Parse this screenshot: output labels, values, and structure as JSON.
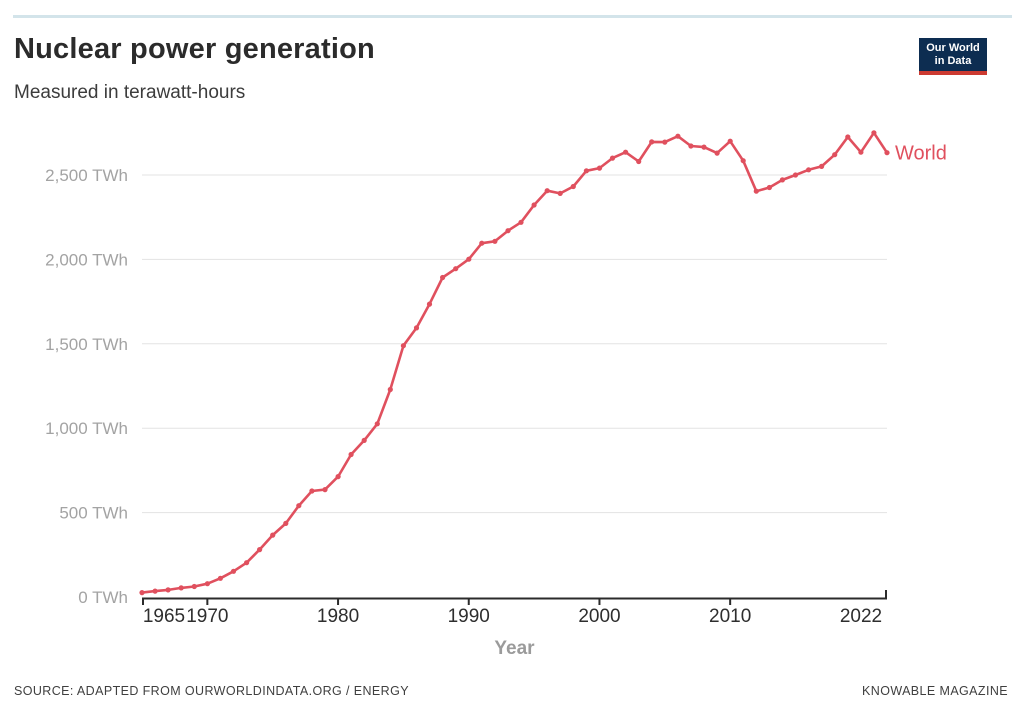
{
  "page": {
    "title": "Nuclear power generation",
    "subtitle": "Measured in terawatt-hours",
    "source_note": "SOURCE: ADAPTED FROM OURWORLDINDATA.ORG / ENERGY",
    "credit": "KNOWABLE MAGAZINE"
  },
  "logo": {
    "name": "our-world-in-data-logo",
    "line1": "Our World",
    "line2": "in Data",
    "bg_color": "#0d2d51",
    "bar_color": "#cc3a31"
  },
  "colors": {
    "accent_rule": "#d3e4ea",
    "line": "#e0505e",
    "grid": "#e3e3e3",
    "axis": "#2b2b2b",
    "y_tick_label": "#a3a3a3",
    "x_tick_label": "#2e2e2e",
    "axis_title": "#9b9b9b"
  },
  "chart_data": {
    "type": "line",
    "title": "Nuclear power generation",
    "subtitle": "Measured in terawatt-hours",
    "xlabel": "Year",
    "ylabel": "",
    "unit": "TWh",
    "xlim": [
      1965,
      2022
    ],
    "ylim": [
      0,
      2790
    ],
    "grid": "horizontal",
    "legend": "end-of-line label",
    "x_ticks": [
      1965,
      1970,
      1980,
      1990,
      2000,
      2010,
      2022
    ],
    "x_tick_labels": [
      "1965",
      "1970",
      "1980",
      "1990",
      "2000",
      "2010",
      "2022"
    ],
    "y_ticks": [
      0,
      500,
      1000,
      1500,
      2000,
      2500
    ],
    "y_tick_labels": [
      "0 TWh",
      "500 TWh",
      "1,000 TWh",
      "1,500 TWh",
      "2,000 TWh",
      "2,500 TWh"
    ],
    "series": [
      {
        "name": "World",
        "color": "#e0505e",
        "years": [
          1965,
          1966,
          1967,
          1968,
          1969,
          1970,
          1971,
          1972,
          1973,
          1974,
          1975,
          1976,
          1977,
          1978,
          1979,
          1980,
          1981,
          1982,
          1983,
          1984,
          1985,
          1986,
          1987,
          1988,
          1989,
          1990,
          1991,
          1992,
          1993,
          1994,
          1995,
          1996,
          1997,
          1998,
          1999,
          2000,
          2001,
          2002,
          2003,
          2004,
          2005,
          2006,
          2007,
          2008,
          2009,
          2010,
          2011,
          2012,
          2013,
          2014,
          2015,
          2016,
          2017,
          2018,
          2019,
          2020,
          2021,
          2022
        ],
        "values": [
          26,
          35,
          42,
          54,
          62,
          79,
          111,
          152,
          203,
          281,
          367,
          436,
          541,
          628,
          636,
          713,
          844,
          928,
          1026,
          1229,
          1489,
          1594,
          1735,
          1893,
          1945,
          2001,
          2096,
          2107,
          2170,
          2220,
          2322,
          2407,
          2391,
          2432,
          2525,
          2541,
          2600,
          2635,
          2580,
          2696,
          2695,
          2730,
          2672,
          2665,
          2630,
          2700,
          2585,
          2404,
          2426,
          2471,
          2500,
          2531,
          2551,
          2620,
          2725,
          2635,
          2750,
          2632
        ]
      }
    ]
  }
}
